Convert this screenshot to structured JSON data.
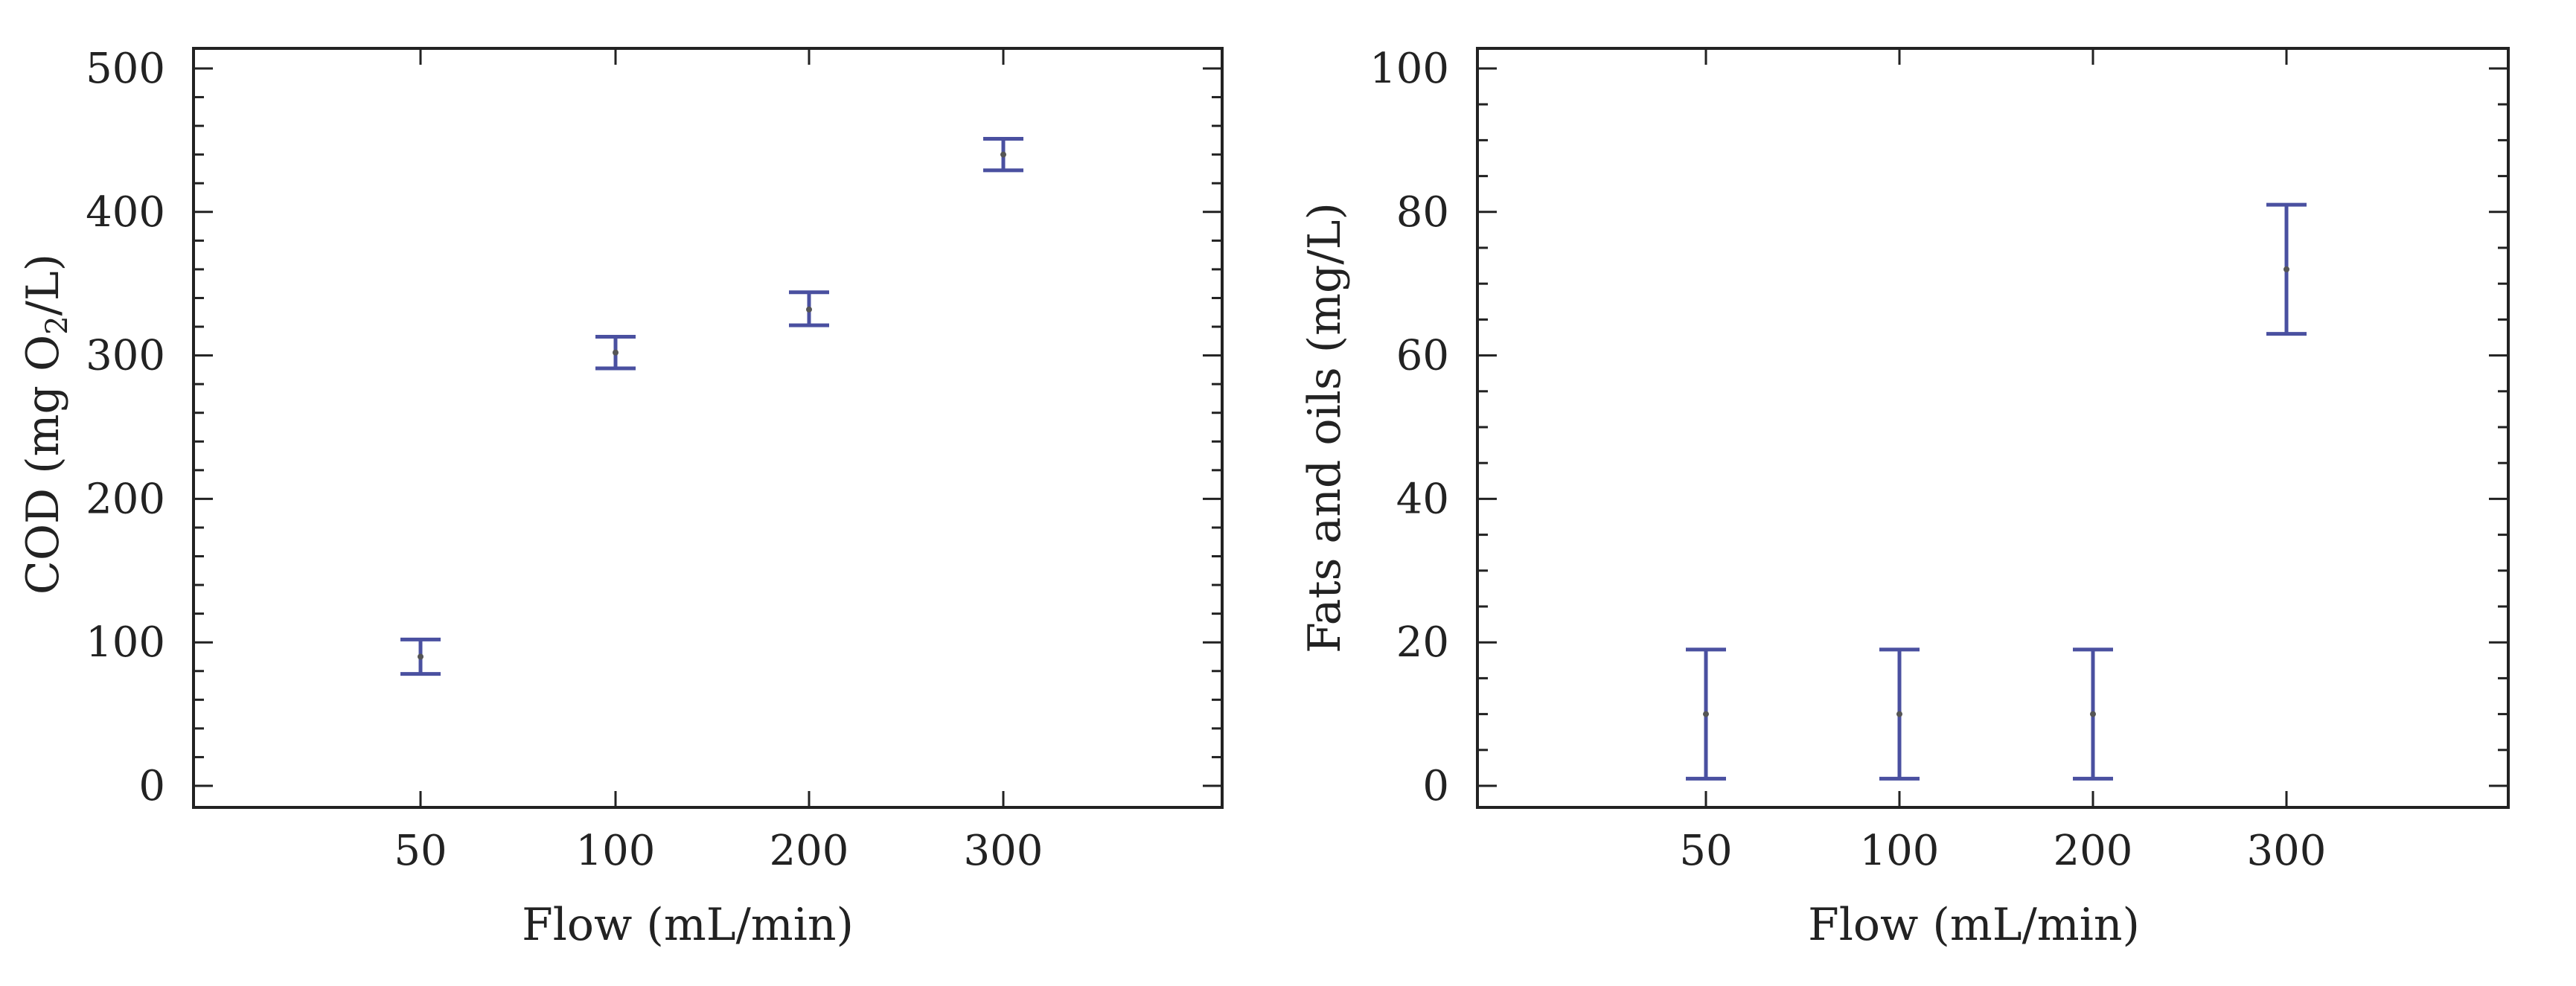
{
  "chart_data": [
    {
      "type": "scatter",
      "xlabel": "Flow (mL/min)",
      "ylabel_main": "COD (mg O",
      "ylabel_sub": "2",
      "ylabel_tail": "/L)",
      "categories": [
        "50",
        "100",
        "200",
        "300"
      ],
      "ylim": [
        0,
        500
      ],
      "yticks": [
        0,
        100,
        200,
        300,
        400,
        500
      ],
      "minor_step": 20,
      "points": [
        {
          "x": "50",
          "mean": 90,
          "low": 78,
          "high": 102
        },
        {
          "x": "100",
          "mean": 302,
          "low": 291,
          "high": 313
        },
        {
          "x": "200",
          "mean": 332,
          "low": 321,
          "high": 344
        },
        {
          "x": "300",
          "mean": 440,
          "low": 429,
          "high": 451
        }
      ],
      "color": "#4a50a0"
    },
    {
      "type": "scatter",
      "xlabel": "Flow (mL/min)",
      "ylabel": "Fats and oils (mg/L)",
      "categories": [
        "50",
        "100",
        "200",
        "300"
      ],
      "ylim": [
        0,
        100
      ],
      "yticks": [
        0,
        20,
        40,
        60,
        80,
        100
      ],
      "minor_step": 5,
      "points": [
        {
          "x": "50",
          "mean": 10,
          "low": 1,
          "high": 19
        },
        {
          "x": "100",
          "mean": 10,
          "low": 1,
          "high": 19
        },
        {
          "x": "200",
          "mean": 10,
          "low": 1,
          "high": 19
        },
        {
          "x": "300",
          "mean": 72,
          "low": 63,
          "high": 81
        }
      ],
      "color": "#4a50a0"
    }
  ]
}
